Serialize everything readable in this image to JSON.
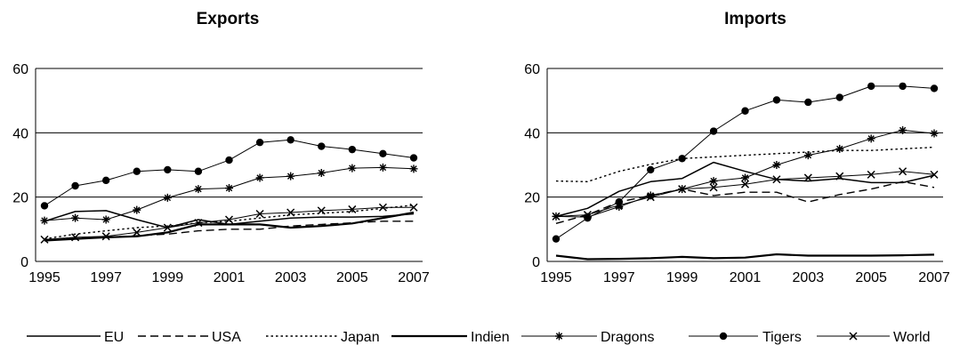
{
  "chart_data": [
    {
      "type": "line",
      "title": "Exports",
      "xlabel": "",
      "ylabel": "",
      "x": [
        1995,
        1996,
        1997,
        1998,
        1999,
        2000,
        2001,
        2002,
        2003,
        2004,
        2005,
        2006,
        2007
      ],
      "x_tick_labels": [
        "1995",
        "1997",
        "1999",
        "2001",
        "2003",
        "2005",
        "2007"
      ],
      "y_tick_labels": [
        "0",
        "20",
        "40",
        "60"
      ],
      "xlim": [
        1995,
        2007
      ],
      "ylim": [
        0,
        60
      ],
      "grid": "horizontal",
      "series": [
        {
          "name": "EU",
          "values": [
            12.5,
            15.5,
            15.8,
            13.0,
            10.5,
            13.0,
            11.5,
            12.5,
            13.5,
            13.8,
            13.8,
            14.0,
            14.8
          ]
        },
        {
          "name": "USA",
          "values": [
            6.8,
            7.2,
            7.5,
            8.0,
            8.5,
            9.5,
            10.0,
            10.0,
            11.0,
            11.5,
            12.0,
            12.5,
            12.5
          ]
        },
        {
          "name": "Japan",
          "values": [
            7.0,
            8.5,
            9.5,
            10.5,
            11.0,
            12.0,
            12.5,
            13.5,
            14.5,
            15.0,
            15.5,
            16.5,
            17.5
          ]
        },
        {
          "name": "Indien",
          "values": [
            6.5,
            7.0,
            7.5,
            7.8,
            9.0,
            11.5,
            11.5,
            11.5,
            10.5,
            11.0,
            11.8,
            13.5,
            15.2
          ]
        },
        {
          "name": "Dragons",
          "values": [
            12.7,
            13.5,
            13.0,
            16.0,
            19.8,
            22.5,
            22.8,
            26.0,
            26.5,
            27.5,
            29.0,
            29.2,
            28.8
          ]
        },
        {
          "name": "Tigers",
          "values": [
            17.3,
            23.5,
            25.2,
            28.0,
            28.5,
            28.0,
            31.5,
            37.0,
            37.8,
            35.8,
            34.8,
            33.5,
            32.2
          ]
        },
        {
          "name": "World",
          "values": [
            6.8,
            7.5,
            7.8,
            9.0,
            10.5,
            12.0,
            13.0,
            14.8,
            15.2,
            15.8,
            16.2,
            16.8,
            16.8
          ]
        }
      ]
    },
    {
      "type": "line",
      "title": "Imports",
      "xlabel": "",
      "ylabel": "",
      "x": [
        1995,
        1996,
        1997,
        1998,
        1999,
        2000,
        2001,
        2002,
        2003,
        2004,
        2005,
        2006,
        2007
      ],
      "x_tick_labels": [
        "1995",
        "1997",
        "1999",
        "2001",
        "2003",
        "2005",
        "2007"
      ],
      "y_tick_labels": [
        "0",
        "20",
        "40",
        "60"
      ],
      "xlim": [
        1995,
        2007
      ],
      "ylim": [
        0,
        60
      ],
      "grid": "horizontal",
      "series": [
        {
          "name": "EU",
          "values": [
            14.0,
            16.5,
            21.8,
            24.8,
            25.8,
            30.8,
            28.0,
            25.5,
            25.0,
            25.8,
            24.5,
            24.5,
            26.8
          ]
        },
        {
          "name": "USA",
          "values": [
            11.8,
            14.5,
            18.5,
            20.5,
            22.5,
            20.5,
            21.5,
            21.5,
            18.5,
            20.8,
            22.5,
            24.8,
            23.0
          ]
        },
        {
          "name": "Japan",
          "values": [
            25.0,
            24.8,
            28.0,
            30.2,
            32.0,
            32.5,
            33.0,
            33.5,
            34.0,
            34.5,
            34.5,
            35.0,
            35.5
          ]
        },
        {
          "name": "Indien",
          "values": [
            1.8,
            0.7,
            0.8,
            1.0,
            1.4,
            1.0,
            1.2,
            2.2,
            1.8,
            1.8,
            1.8,
            1.9,
            2.1
          ]
        },
        {
          "name": "Dragons",
          "values": [
            14.0,
            13.8,
            17.0,
            20.5,
            22.5,
            25.0,
            26.0,
            30.0,
            33.0,
            35.0,
            38.2,
            40.8,
            39.8
          ]
        },
        {
          "name": "Tigers",
          "values": [
            7.0,
            13.5,
            18.5,
            28.5,
            32.0,
            40.5,
            46.8,
            50.2,
            49.5,
            51.0,
            54.5,
            54.5,
            53.8
          ]
        },
        {
          "name": "World",
          "values": [
            14.0,
            14.5,
            17.5,
            20.0,
            22.5,
            23.0,
            24.0,
            25.5,
            26.0,
            26.5,
            27.0,
            28.0,
            27.0
          ]
        }
      ]
    }
  ],
  "legend": [
    {
      "name": "EU",
      "style": "solid-thin"
    },
    {
      "name": "USA",
      "style": "long-dash"
    },
    {
      "name": "Japan",
      "style": "dotted"
    },
    {
      "name": "Indien",
      "style": "solid-thick"
    },
    {
      "name": "Dragons",
      "style": "asterisk-marker"
    },
    {
      "name": "Tigers",
      "style": "dot-marker"
    },
    {
      "name": "World",
      "style": "cross-marker"
    }
  ],
  "colors": {
    "line": "#000000",
    "grid": "#000000",
    "background": "#ffffff"
  }
}
